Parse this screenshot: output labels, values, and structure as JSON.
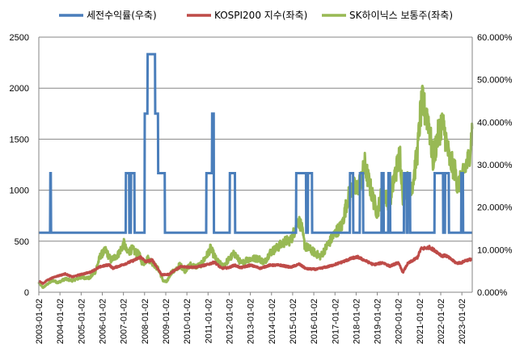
{
  "chart_data": {
    "type": "line",
    "title": "",
    "xlabel": "",
    "ylabel_left": "",
    "ylabel_right": "",
    "legend_position": "top",
    "grid": true,
    "x_range": [
      "2003-01-02",
      "2023-06-30"
    ],
    "y_left_range": [
      0,
      2500
    ],
    "y_left_ticks": [
      "0",
      "500",
      "1000",
      "1500",
      "2000",
      "2500"
    ],
    "y_right_range": [
      0,
      60
    ],
    "y_right_ticks": [
      "0.000%",
      "10.000%",
      "20.000%",
      "30.000%",
      "40.000%",
      "50.000%",
      "60.000%"
    ],
    "x_ticks": [
      "2003-01-02",
      "2004-01-02",
      "2005-01-02",
      "2006-01-02",
      "2007-01-02",
      "2008-01-02",
      "2009-01-02",
      "2010-01-02",
      "2011-01-02",
      "2012-01-02",
      "2013-01-02",
      "2014-01-02",
      "2015-01-02",
      "2016-01-02",
      "2017-01-02",
      "2018-01-02",
      "2019-01-02",
      "2020-01-02",
      "2021-01-02",
      "2022-01-02",
      "2023-01-02"
    ],
    "series": [
      {
        "name": "세전수익률(우축)",
        "axis": "right",
        "color": "#4a7ebb",
        "points": [
          [
            "2003-01-02",
            14
          ],
          [
            "2003-07-15",
            14
          ],
          [
            "2003-07-20",
            28
          ],
          [
            "2003-07-28",
            28
          ],
          [
            "2003-08-02",
            14
          ],
          [
            "2007-02-10",
            14
          ],
          [
            "2007-02-14",
            28
          ],
          [
            "2007-04-10",
            28
          ],
          [
            "2007-04-14",
            14
          ],
          [
            "2007-05-10",
            14
          ],
          [
            "2007-05-14",
            28
          ],
          [
            "2007-07-10",
            28
          ],
          [
            "2007-07-14",
            14
          ],
          [
            "2008-01-01",
            14
          ],
          [
            "2008-01-05",
            42
          ],
          [
            "2008-02-20",
            42
          ],
          [
            "2008-02-24",
            56
          ],
          [
            "2008-06-30",
            56
          ],
          [
            "2008-07-04",
            42
          ],
          [
            "2008-08-20",
            42
          ],
          [
            "2008-08-24",
            28
          ],
          [
            "2008-12-15",
            28
          ],
          [
            "2008-12-19",
            14
          ],
          [
            "2010-12-01",
            14
          ],
          [
            "2010-12-05",
            28
          ],
          [
            "2011-03-10",
            28
          ],
          [
            "2011-03-14",
            42
          ],
          [
            "2011-04-10",
            42
          ],
          [
            "2011-04-14",
            14
          ],
          [
            "2012-01-10",
            14
          ],
          [
            "2012-01-14",
            28
          ],
          [
            "2012-04-10",
            28
          ],
          [
            "2012-04-14",
            14
          ],
          [
            "2015-03-01",
            14
          ],
          [
            "2015-03-05",
            28
          ],
          [
            "2015-08-20",
            28
          ],
          [
            "2015-08-24",
            14
          ],
          [
            "2015-09-20",
            14
          ],
          [
            "2015-09-24",
            28
          ],
          [
            "2015-12-01",
            28
          ],
          [
            "2015-12-05",
            14
          ],
          [
            "2017-09-15",
            14
          ],
          [
            "2017-09-19",
            28
          ],
          [
            "2017-11-10",
            28
          ],
          [
            "2017-11-14",
            14
          ],
          [
            "2018-03-05",
            14
          ],
          [
            "2018-03-09",
            28
          ],
          [
            "2018-05-01",
            28
          ],
          [
            "2018-05-05",
            14
          ],
          [
            "2019-03-15",
            14
          ],
          [
            "2019-03-19",
            28
          ],
          [
            "2019-04-20",
            28
          ],
          [
            "2019-04-24",
            14
          ],
          [
            "2019-07-10",
            14
          ],
          [
            "2019-07-14",
            28
          ],
          [
            "2019-08-10",
            28
          ],
          [
            "2019-08-14",
            14
          ],
          [
            "2020-04-05",
            14
          ],
          [
            "2020-04-09",
            28
          ],
          [
            "2020-05-20",
            28
          ],
          [
            "2020-05-24",
            14
          ],
          [
            "2020-06-10",
            14
          ],
          [
            "2020-06-14",
            28
          ],
          [
            "2020-07-20",
            28
          ],
          [
            "2020-07-24",
            14
          ],
          [
            "2021-09-15",
            14
          ],
          [
            "2021-09-19",
            28
          ],
          [
            "2022-02-10",
            28
          ],
          [
            "2022-02-14",
            14
          ],
          [
            "2022-03-15",
            14
          ],
          [
            "2022-03-19",
            28
          ],
          [
            "2022-05-20",
            28
          ],
          [
            "2022-05-24",
            14
          ],
          [
            "2022-12-20",
            14
          ],
          [
            "2022-12-24",
            28
          ],
          [
            "2023-01-20",
            28
          ],
          [
            "2023-01-24",
            14
          ],
          [
            "2023-06-30",
            14
          ]
        ]
      },
      {
        "name": "KOSPI200 지수(좌축)",
        "axis": "left",
        "color": "#be4b48",
        "points": [
          [
            "2003-01-02",
            110
          ],
          [
            "2003-03-15",
            85
          ],
          [
            "2003-06-01",
            120
          ],
          [
            "2003-10-01",
            150
          ],
          [
            "2004-04-01",
            180
          ],
          [
            "2004-08-01",
            150
          ],
          [
            "2005-01-02",
            175
          ],
          [
            "2005-06-01",
            195
          ],
          [
            "2005-12-01",
            250
          ],
          [
            "2006-05-01",
            270
          ],
          [
            "2006-07-01",
            235
          ],
          [
            "2006-12-01",
            265
          ],
          [
            "2007-06-01",
            305
          ],
          [
            "2007-10-31",
            345
          ],
          [
            "2008-01-15",
            300
          ],
          [
            "2008-05-15",
            315
          ],
          [
            "2008-10-24",
            170
          ],
          [
            "2009-03-01",
            175
          ],
          [
            "2009-06-01",
            215
          ],
          [
            "2009-09-20",
            250
          ],
          [
            "2010-05-25",
            245
          ],
          [
            "2010-12-20",
            270
          ],
          [
            "2011-04-25",
            295
          ],
          [
            "2011-08-20",
            235
          ],
          [
            "2011-12-20",
            240
          ],
          [
            "2012-04-01",
            265
          ],
          [
            "2012-07-25",
            240
          ],
          [
            "2013-01-02",
            265
          ],
          [
            "2013-06-25",
            235
          ],
          [
            "2013-12-01",
            265
          ],
          [
            "2014-06-01",
            265
          ],
          [
            "2014-12-01",
            245
          ],
          [
            "2015-04-25",
            275
          ],
          [
            "2015-08-25",
            230
          ],
          [
            "2016-02-15",
            225
          ],
          [
            "2016-10-01",
            255
          ],
          [
            "2017-05-01",
            295
          ],
          [
            "2017-11-01",
            335
          ],
          [
            "2018-01-29",
            345
          ],
          [
            "2018-10-30",
            270
          ],
          [
            "2019-04-10",
            290
          ],
          [
            "2019-08-06",
            255
          ],
          [
            "2019-12-30",
            290
          ],
          [
            "2020-03-19",
            195
          ],
          [
            "2020-06-10",
            280
          ],
          [
            "2020-11-25",
            340
          ],
          [
            "2021-01-25",
            425
          ],
          [
            "2021-06-25",
            440
          ],
          [
            "2021-10-15",
            400
          ],
          [
            "2022-01-27",
            355
          ],
          [
            "2022-04-01",
            360
          ],
          [
            "2022-09-30",
            285
          ],
          [
            "2022-12-30",
            290
          ],
          [
            "2023-03-01",
            310
          ],
          [
            "2023-06-30",
            325
          ]
        ]
      },
      {
        "name": "SK하이닉스 보통주(좌축)",
        "axis": "left",
        "color": "#98b954",
        "points": [
          [
            "2003-01-02",
            95
          ],
          [
            "2003-03-15",
            45
          ],
          [
            "2003-06-01",
            80
          ],
          [
            "2003-09-01",
            115
          ],
          [
            "2003-12-01",
            95
          ],
          [
            "2004-04-01",
            130
          ],
          [
            "2004-08-01",
            115
          ],
          [
            "2005-01-02",
            145
          ],
          [
            "2005-06-01",
            140
          ],
          [
            "2005-09-01",
            200
          ],
          [
            "2005-12-01",
            360
          ],
          [
            "2006-03-01",
            410
          ],
          [
            "2006-06-01",
            315
          ],
          [
            "2006-10-01",
            370
          ],
          [
            "2007-01-15",
            480
          ],
          [
            "2007-03-01",
            390
          ],
          [
            "2007-06-01",
            420
          ],
          [
            "2007-10-01",
            365
          ],
          [
            "2007-12-01",
            280
          ],
          [
            "2008-03-01",
            330
          ],
          [
            "2008-06-01",
            280
          ],
          [
            "2008-09-01",
            220
          ],
          [
            "2008-11-20",
            110
          ],
          [
            "2009-01-20",
            100
          ],
          [
            "2009-04-01",
            190
          ],
          [
            "2009-07-01",
            220
          ],
          [
            "2009-09-01",
            270
          ],
          [
            "2009-12-01",
            210
          ],
          [
            "2010-03-01",
            270
          ],
          [
            "2010-06-01",
            250
          ],
          [
            "2010-09-01",
            270
          ],
          [
            "2010-12-15",
            365
          ],
          [
            "2011-02-15",
            430
          ],
          [
            "2011-04-01",
            380
          ],
          [
            "2011-06-01",
            310
          ],
          [
            "2011-09-15",
            255
          ],
          [
            "2012-01-01",
            325
          ],
          [
            "2012-04-01",
            380
          ],
          [
            "2012-08-01",
            280
          ],
          [
            "2012-11-01",
            320
          ],
          [
            "2013-03-01",
            330
          ],
          [
            "2013-06-01",
            330
          ],
          [
            "2013-09-01",
            290
          ],
          [
            "2013-12-01",
            385
          ],
          [
            "2014-03-01",
            420
          ],
          [
            "2014-06-01",
            460
          ],
          [
            "2014-09-01",
            500
          ],
          [
            "2014-12-01",
            510
          ],
          [
            "2015-02-01",
            600
          ],
          [
            "2015-04-01",
            710
          ],
          [
            "2015-06-01",
            650
          ],
          [
            "2015-08-01",
            450
          ],
          [
            "2015-11-01",
            420
          ],
          [
            "2016-02-01",
            380
          ],
          [
            "2016-05-01",
            350
          ],
          [
            "2016-08-01",
            440
          ],
          [
            "2016-11-01",
            520
          ],
          [
            "2017-02-01",
            600
          ],
          [
            "2017-05-01",
            650
          ],
          [
            "2017-08-01",
            900
          ],
          [
            "2017-11-01",
            1050
          ],
          [
            "2018-01-01",
            1000
          ],
          [
            "2018-04-01",
            1100
          ],
          [
            "2018-06-01",
            1250
          ],
          [
            "2018-08-01",
            1100
          ],
          [
            "2018-11-01",
            900
          ],
          [
            "2019-01-02",
            780
          ],
          [
            "2019-04-01",
            1000
          ],
          [
            "2019-08-01",
            870
          ],
          [
            "2019-11-01",
            1150
          ],
          [
            "2020-02-01",
            1350
          ],
          [
            "2020-03-19",
            950
          ],
          [
            "2020-06-01",
            1080
          ],
          [
            "2020-09-01",
            1050
          ],
          [
            "2020-12-01",
            1400
          ],
          [
            "2021-01-15",
            1750
          ],
          [
            "2021-02-20",
            1850
          ],
          [
            "2021-04-01",
            1780
          ],
          [
            "2021-06-01",
            1700
          ],
          [
            "2021-08-20",
            1300
          ],
          [
            "2021-11-01",
            1500
          ],
          [
            "2022-01-10",
            1650
          ],
          [
            "2022-03-01",
            1600
          ],
          [
            "2022-06-01",
            1300
          ],
          [
            "2022-09-01",
            1200
          ],
          [
            "2022-10-20",
            1050
          ],
          [
            "2023-01-02",
            1100
          ],
          [
            "2023-03-15",
            1250
          ],
          [
            "2023-05-01",
            1300
          ],
          [
            "2023-06-30",
            1600
          ]
        ]
      }
    ]
  }
}
